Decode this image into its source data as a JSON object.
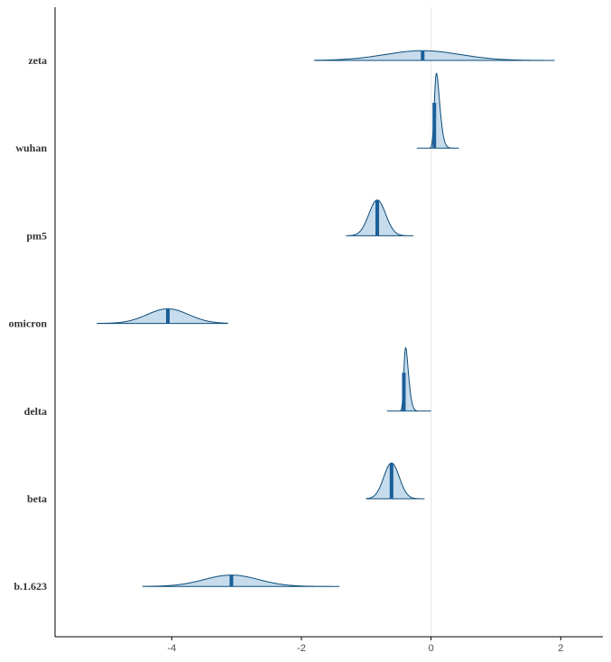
{
  "chart_data": {
    "type": "ridgeline",
    "title": "",
    "xlabel": "",
    "ylabel": "",
    "xlim": [
      -5.8,
      2.65
    ],
    "x_ticks": [
      -4,
      -2,
      0,
      2
    ],
    "x_tick_labels": [
      "-4",
      "-2",
      "0",
      "2"
    ],
    "reference_line_x": 0,
    "grid": false,
    "colors": {
      "fill": "#c6dbeb",
      "outline": "#0b4d7a",
      "median": "#1a5f99",
      "refline": "#e3e3e3",
      "axis": "#000000"
    },
    "categories": [
      "zeta",
      "wuhan",
      "pm5",
      "omicron",
      "delta",
      "beta",
      "b.1.623"
    ],
    "series": [
      {
        "category": "zeta",
        "median": -0.13,
        "sd": 0.58,
        "skew": 0.0,
        "x_min": -1.8,
        "x_max": 1.9,
        "peak_height": 0.12
      },
      {
        "category": "wuhan",
        "median": 0.05,
        "sd": 0.07,
        "skew": 3.0,
        "x_min": -0.22,
        "x_max": 0.43,
        "peak_height": 0.92
      },
      {
        "category": "pm5",
        "median": -0.83,
        "sd": 0.13,
        "skew": 0.0,
        "x_min": -1.31,
        "x_max": -0.27,
        "peak_height": 0.44
      },
      {
        "category": "omicron",
        "median": -4.06,
        "sd": 0.32,
        "skew": 0.0,
        "x_min": -5.15,
        "x_max": -3.14,
        "peak_height": 0.18
      },
      {
        "category": "delta",
        "median": -0.42,
        "sd": 0.06,
        "skew": 3.0,
        "x_min": -0.68,
        "x_max": 0.0,
        "peak_height": 0.78
      },
      {
        "category": "beta",
        "median": -0.61,
        "sd": 0.12,
        "skew": 0.0,
        "x_min": -1.0,
        "x_max": -0.1,
        "peak_height": 0.44
      },
      {
        "category": "b.1.623",
        "median": -3.08,
        "sd": 0.42,
        "skew": 0.0,
        "x_min": -4.45,
        "x_max": -1.42,
        "peak_height": 0.14
      }
    ]
  }
}
